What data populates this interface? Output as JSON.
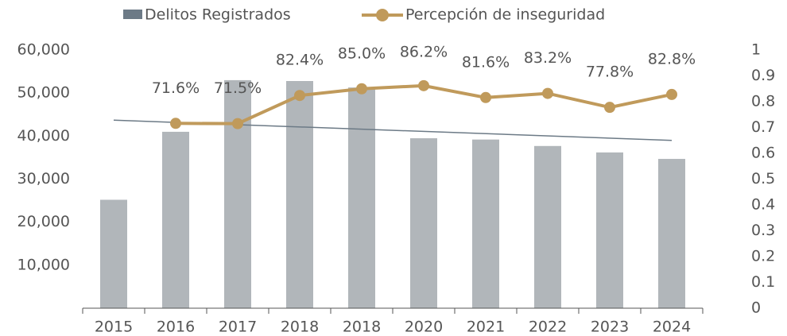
{
  "chart_data": {
    "type": "bar_line",
    "categories": [
      "2015",
      "2016",
      "2017",
      "2018",
      "2018",
      "2020",
      "2021",
      "2022",
      "2023",
      "2024"
    ],
    "series": [
      {
        "name": "Delitos Registrados",
        "color": "#b1b6ba",
        "legend_color": "#6c7a86",
        "values": [
          25200,
          41000,
          53000,
          52800,
          51300,
          39500,
          39200,
          37700,
          36200,
          34700
        ]
      },
      {
        "name": "Percepción de inseguridad",
        "color": "#c09a5b",
        "axis": "y2",
        "values": [
          null,
          0.716,
          0.715,
          0.824,
          0.85,
          0.862,
          0.816,
          0.832,
          0.778,
          0.828
        ],
        "value_labels": [
          null,
          "71.6%",
          "71.5%",
          "82.4%",
          "85.0%",
          "86.2%",
          "81.6%",
          "83.2%",
          "77.8%",
          "82.8%"
        ]
      }
    ],
    "trendline": {
      "color": "#6c7a86",
      "values": [
        43700,
        39000
      ]
    },
    "ylim": [
      0,
      60000
    ],
    "yticks": [
      {
        "value": 10000,
        "label": "10,000"
      },
      {
        "value": 20000,
        "label": "20,000"
      },
      {
        "value": 30000,
        "label": "30,000"
      },
      {
        "value": 40000,
        "label": "40,000"
      },
      {
        "value": 50000,
        "label": "50,000"
      },
      {
        "value": 60000,
        "label": "60,000"
      }
    ],
    "y2lim": [
      0,
      1
    ],
    "y2ticks": [
      0,
      0.1,
      0.2,
      0.3,
      0.4,
      0.5,
      0.6,
      0.7,
      0.8,
      0.9,
      1
    ]
  }
}
